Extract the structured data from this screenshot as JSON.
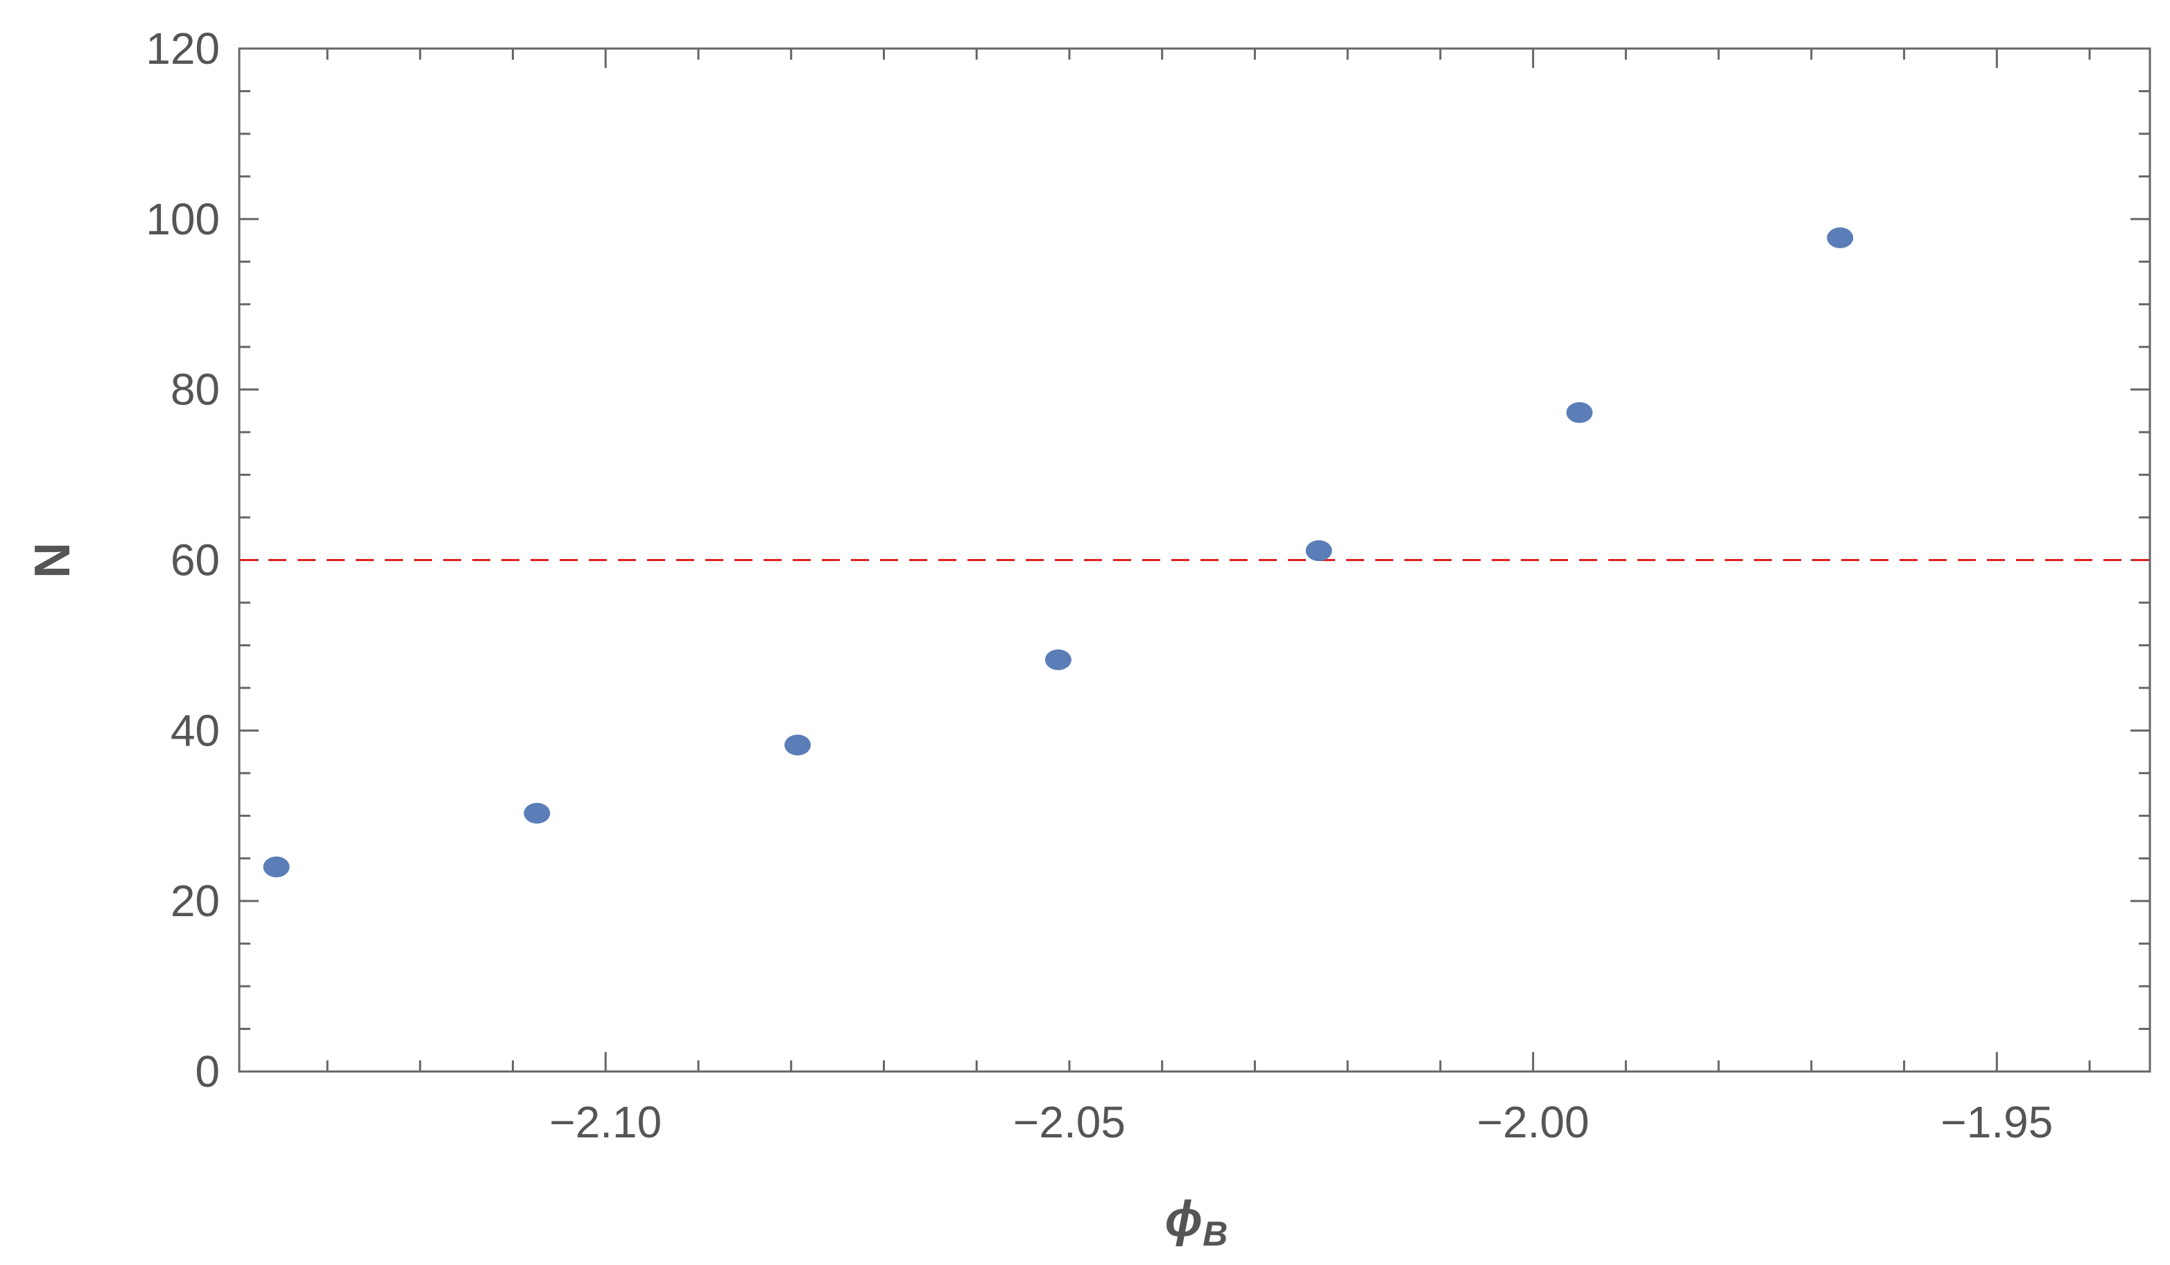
{
  "chart_data": {
    "type": "scatter",
    "xlabel": "ϕ",
    "xlabel_subscript": "B",
    "ylabel": "N",
    "xlim": [
      -2.1395,
      -1.9335
    ],
    "ylim": [
      0,
      120
    ],
    "x_ticks": [
      -2.1,
      -2.05,
      -2.0,
      -1.95
    ],
    "x_tick_labels": [
      "−2.10",
      "−2.05",
      "−2.00",
      "−1.95"
    ],
    "y_ticks": [
      0,
      20,
      40,
      60,
      80,
      100,
      120
    ],
    "y_tick_labels": [
      "0",
      "20",
      "40",
      "60",
      "80",
      "100",
      "120"
    ],
    "grid": false,
    "frame": true,
    "series": [
      {
        "color": "#5b7db8",
        "points": [
          {
            "x": -2.1355,
            "y": 24
          },
          {
            "x": -2.1074,
            "y": 30.3
          },
          {
            "x": -2.0793,
            "y": 38.3
          },
          {
            "x": -2.0512,
            "y": 48.3
          },
          {
            "x": -2.0231,
            "y": 61.1
          },
          {
            "x": -1.995,
            "y": 77.3
          },
          {
            "x": -1.9669,
            "y": 97.8
          }
        ]
      }
    ],
    "reference_lines": [
      {
        "orientation": "horizontal",
        "y": 60,
        "color": "#e02020",
        "style": "dashed"
      }
    ]
  }
}
